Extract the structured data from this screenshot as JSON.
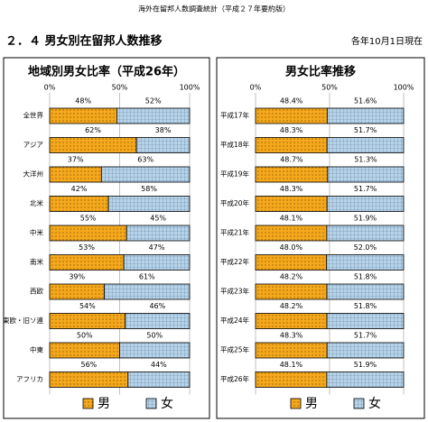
{
  "header": {
    "title": "海外在留邦人数調査統計（平成２７年要約版）",
    "section": "２．４ 男女別在留邦人数推移",
    "date": "各年10月1日現在"
  },
  "chart_data": [
    {
      "type": "bar",
      "orientation": "horizontal",
      "stacked": true,
      "title": "地域別男女比率（平成26年）",
      "categories": [
        "全世界",
        "アジア",
        "大洋州",
        "北米",
        "中米",
        "南米",
        "西欧",
        "東欧・旧ソ連",
        "中東",
        "アフリカ"
      ],
      "series": [
        {
          "name": "男",
          "color": "#f5a81c",
          "values": [
            48,
            62,
            37,
            42,
            55,
            53,
            39,
            54,
            50,
            56
          ],
          "value_labels": [
            "48%",
            "62%",
            "37%",
            "42%",
            "55%",
            "53%",
            "39%",
            "54%",
            "50%",
            "56%"
          ]
        },
        {
          "name": "女",
          "color": "#b7d3e9",
          "values": [
            52,
            38,
            63,
            58,
            45,
            47,
            61,
            46,
            50,
            44
          ],
          "value_labels": [
            "52%",
            "38%",
            "63%",
            "58%",
            "45%",
            "47%",
            "61%",
            "46%",
            "50%",
            "44%"
          ]
        }
      ],
      "xlim": [
        0,
        100
      ],
      "xticks": [
        {
          "value": 0,
          "label": "0%"
        },
        {
          "value": 50,
          "label": "50%"
        },
        {
          "value": 100,
          "label": "100%"
        }
      ],
      "grid": true,
      "legend": "bottom"
    },
    {
      "type": "bar",
      "orientation": "horizontal",
      "stacked": true,
      "title": "男女比率推移",
      "categories": [
        "平成17年",
        "平成18年",
        "平成19年",
        "平成20年",
        "平成21年",
        "平成22年",
        "平成23年",
        "平成24年",
        "平成25年",
        "平成26年"
      ],
      "series": [
        {
          "name": "男",
          "color": "#f5a81c",
          "values": [
            48.4,
            48.3,
            48.7,
            48.3,
            48.1,
            48.0,
            48.2,
            48.2,
            48.3,
            48.1
          ],
          "value_labels": [
            "48.4%",
            "48.3%",
            "48.7%",
            "48.3%",
            "48.1%",
            "48.0%",
            "48.2%",
            "48.2%",
            "48.3%",
            "48.1%"
          ]
        },
        {
          "name": "女",
          "color": "#b7d3e9",
          "values": [
            51.6,
            51.7,
            51.3,
            51.7,
            51.9,
            52.0,
            51.8,
            51.8,
            51.7,
            51.9
          ],
          "value_labels": [
            "51.6%",
            "51.7%",
            "51.3%",
            "51.7%",
            "51.9%",
            "52.0%",
            "51.8%",
            "51.8%",
            "51.7%",
            "51.9%"
          ]
        }
      ],
      "xlim": [
        0,
        100
      ],
      "xticks": [
        {
          "value": 0,
          "label": "0%"
        },
        {
          "value": 50,
          "label": "50%"
        },
        {
          "value": 100,
          "label": "100%"
        }
      ],
      "grid": true,
      "legend": "bottom"
    }
  ]
}
